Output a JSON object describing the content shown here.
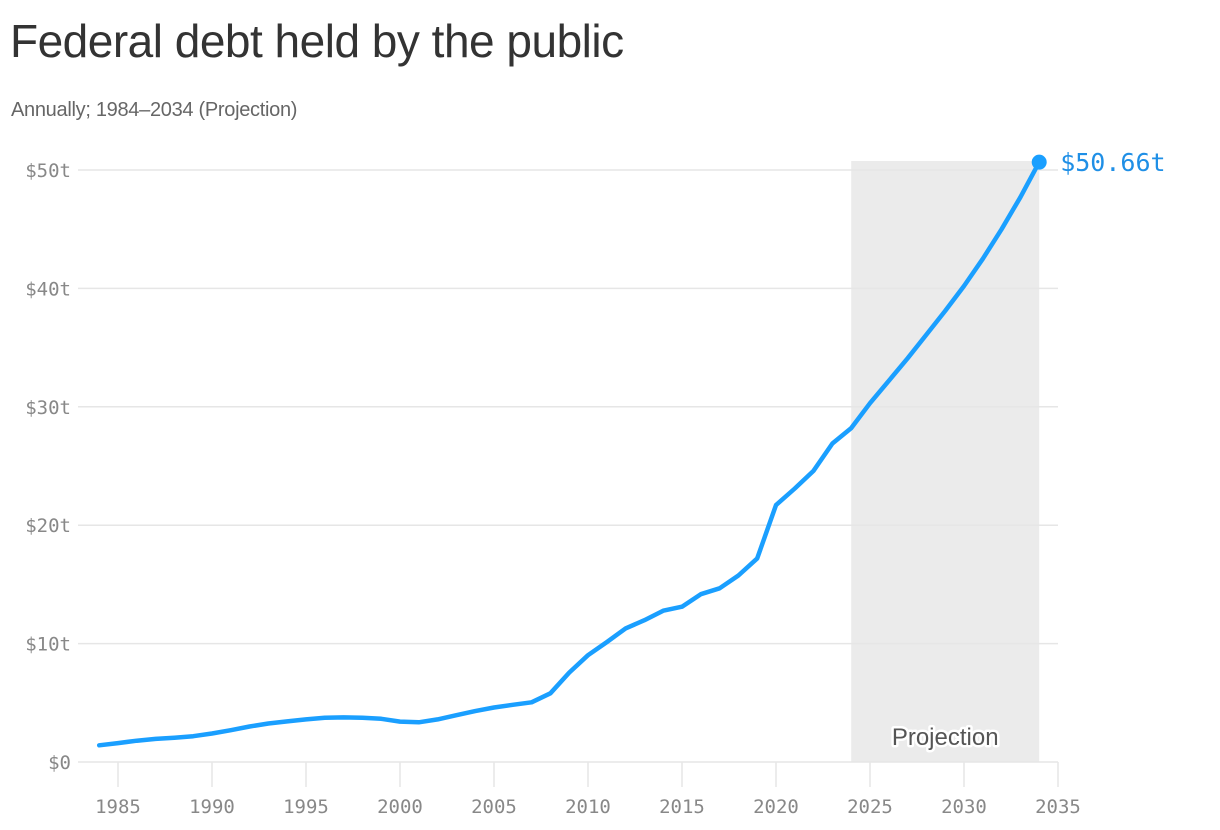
{
  "header": {
    "title": "Federal debt held by the public",
    "subtitle": "Annually; 1984–2034 (Projection)"
  },
  "colors": {
    "line": "#1a9fff",
    "end_label": "#1f8fe6",
    "projection_band": "#ebebeb",
    "gridline": "#e6e6e6",
    "axis_text": "#888888",
    "title": "#333333",
    "subtitle": "#666666"
  },
  "annotations": {
    "end_value_label": "$50.66t",
    "projection_label": "Projection",
    "projection_range": [
      2024,
      2034
    ]
  },
  "chart_data": {
    "type": "line",
    "title": "Federal debt held by the public",
    "subtitle": "Annually; 1984–2034 (Projection)",
    "xlabel": "",
    "ylabel": "",
    "xlim": [
      1984,
      2035
    ],
    "ylim": [
      0,
      50
    ],
    "grid": true,
    "legend": null,
    "x_ticks": [
      "1985",
      "1990",
      "1995",
      "2000",
      "2005",
      "2010",
      "2015",
      "2020",
      "2025",
      "2030",
      "2035"
    ],
    "y_ticks": [
      "$0",
      "$10t",
      "$20t",
      "$30t",
      "$40t",
      "$50t"
    ],
    "y_tick_values": [
      0,
      10,
      20,
      30,
      40,
      50
    ],
    "units": "trillions of dollars",
    "annotations": [
      {
        "text": "$50.66t",
        "x": 2034,
        "y": 50.66
      },
      {
        "text": "Projection",
        "shaded_x_range": [
          2024,
          2034
        ]
      }
    ],
    "series": [
      {
        "name": "Federal debt held by the public",
        "x": [
          1984,
          1985,
          1986,
          1987,
          1988,
          1989,
          1990,
          1991,
          1992,
          1993,
          1994,
          1995,
          1996,
          1997,
          1998,
          1999,
          2000,
          2001,
          2002,
          2003,
          2004,
          2005,
          2006,
          2007,
          2008,
          2009,
          2010,
          2011,
          2012,
          2013,
          2014,
          2015,
          2016,
          2017,
          2018,
          2019,
          2020,
          2021,
          2022,
          2023,
          2024,
          2025,
          2026,
          2027,
          2028,
          2029,
          2030,
          2031,
          2032,
          2033,
          2034
        ],
        "values": [
          1.41,
          1.6,
          1.8,
          1.95,
          2.05,
          2.18,
          2.41,
          2.69,
          3.0,
          3.25,
          3.43,
          3.6,
          3.73,
          3.77,
          3.73,
          3.65,
          3.41,
          3.35,
          3.6,
          3.95,
          4.3,
          4.6,
          4.83,
          5.04,
          5.8,
          7.55,
          9.02,
          10.13,
          11.28,
          11.98,
          12.78,
          13.12,
          14.17,
          14.67,
          15.75,
          17.2,
          21.7,
          23.1,
          24.6,
          26.9,
          28.2,
          30.3,
          32.2,
          34.1,
          36.1,
          38.1,
          40.2,
          42.5,
          45.0,
          47.7,
          50.66
        ]
      }
    ]
  }
}
